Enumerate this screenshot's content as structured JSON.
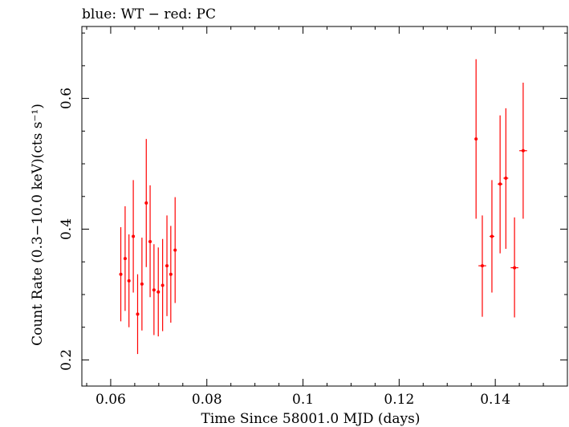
{
  "chart_data": {
    "type": "scatter",
    "title": "blue: WT − red: PC",
    "xlabel": "Time Since 58001.0 MJD (days)",
    "ylabel": "Count Rate (0.3−10.0 keV)(cts s⁻¹)",
    "xlim": [
      0.054,
      0.155
    ],
    "ylim": [
      0.16,
      0.71
    ],
    "xticks": [
      0.06,
      0.08,
      0.1,
      0.12,
      0.14
    ],
    "xtick_labels": [
      "0.06",
      "0.08",
      "0.1",
      "0.12",
      "0.14"
    ],
    "yticks": [
      0.2,
      0.4,
      0.6
    ],
    "ytick_labels": [
      "0.2",
      "0.4",
      "0.6"
    ],
    "grid": false,
    "series": [
      {
        "name": "PC",
        "color": "#ff0000",
        "points": [
          {
            "x": 0.0621,
            "y": 0.331,
            "xerr": 0.0003,
            "ylo": 0.259,
            "yhi": 0.403
          },
          {
            "x": 0.063,
            "y": 0.355,
            "xerr": 0.0003,
            "ylo": 0.275,
            "yhi": 0.435
          },
          {
            "x": 0.0638,
            "y": 0.321,
            "xerr": 0.0003,
            "ylo": 0.25,
            "yhi": 0.392
          },
          {
            "x": 0.0647,
            "y": 0.389,
            "xerr": 0.0003,
            "ylo": 0.303,
            "yhi": 0.475
          },
          {
            "x": 0.0656,
            "y": 0.27,
            "xerr": 0.0003,
            "ylo": 0.209,
            "yhi": 0.331
          },
          {
            "x": 0.0665,
            "y": 0.316,
            "xerr": 0.0003,
            "ylo": 0.245,
            "yhi": 0.387
          },
          {
            "x": 0.0674,
            "y": 0.44,
            "xerr": 0.0003,
            "ylo": 0.342,
            "yhi": 0.538
          },
          {
            "x": 0.0682,
            "y": 0.381,
            "xerr": 0.0003,
            "ylo": 0.296,
            "yhi": 0.467
          },
          {
            "x": 0.069,
            "y": 0.307,
            "xerr": 0.0003,
            "ylo": 0.238,
            "yhi": 0.377
          },
          {
            "x": 0.0699,
            "y": 0.304,
            "xerr": 0.0003,
            "ylo": 0.236,
            "yhi": 0.372
          },
          {
            "x": 0.0708,
            "y": 0.314,
            "xerr": 0.0003,
            "ylo": 0.244,
            "yhi": 0.385
          },
          {
            "x": 0.0717,
            "y": 0.344,
            "xerr": 0.0003,
            "ylo": 0.267,
            "yhi": 0.421
          },
          {
            "x": 0.0725,
            "y": 0.331,
            "xerr": 0.0003,
            "ylo": 0.257,
            "yhi": 0.405
          },
          {
            "x": 0.0734,
            "y": 0.368,
            "xerr": 0.0003,
            "ylo": 0.287,
            "yhi": 0.449
          },
          {
            "x": 0.136,
            "y": 0.538,
            "xerr": 0.0003,
            "ylo": 0.416,
            "yhi": 0.66
          },
          {
            "x": 0.1373,
            "y": 0.344,
            "xerr": 0.0008,
            "ylo": 0.266,
            "yhi": 0.421
          },
          {
            "x": 0.1393,
            "y": 0.389,
            "xerr": 0.0005,
            "ylo": 0.303,
            "yhi": 0.475
          },
          {
            "x": 0.141,
            "y": 0.469,
            "xerr": 0.0005,
            "ylo": 0.363,
            "yhi": 0.574
          },
          {
            "x": 0.1422,
            "y": 0.478,
            "xerr": 0.0005,
            "ylo": 0.37,
            "yhi": 0.585
          },
          {
            "x": 0.144,
            "y": 0.341,
            "xerr": 0.0008,
            "ylo": 0.265,
            "yhi": 0.418
          },
          {
            "x": 0.1458,
            "y": 0.52,
            "xerr": 0.0008,
            "ylo": 0.416,
            "yhi": 0.624
          }
        ]
      }
    ]
  }
}
